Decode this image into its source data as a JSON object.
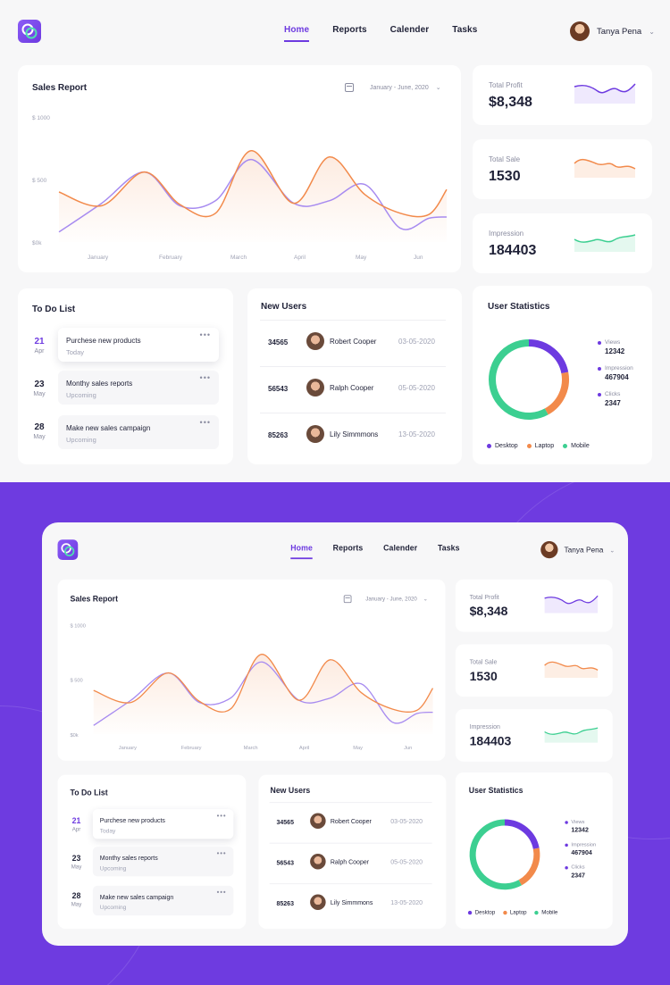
{
  "nav": {
    "items": [
      {
        "label": "Home",
        "active": true
      },
      {
        "label": "Reports",
        "active": false
      },
      {
        "label": "Calender",
        "active": false
      },
      {
        "label": "Tasks",
        "active": false
      }
    ]
  },
  "user": {
    "name": "Tanya Pena"
  },
  "sales_report": {
    "title": "Sales Report",
    "date_range": "January - June, 2020"
  },
  "stats": [
    {
      "label": "Total Profit",
      "value": "$8,348",
      "color": "#6d3ae0"
    },
    {
      "label": "Total Sale",
      "value": "1530",
      "color": "#f28a4b"
    },
    {
      "label": "Impression",
      "value": "184403",
      "color": "#3ccf91"
    }
  ],
  "todo": {
    "title": "To Do List",
    "items": [
      {
        "day": "21",
        "month": "Apr",
        "title": "Purchese new products",
        "status": "Today",
        "active": true
      },
      {
        "day": "23",
        "month": "May",
        "title": "Monthy sales reports",
        "status": "Upcoming",
        "active": false
      },
      {
        "day": "28",
        "month": "May",
        "title": "Make new sales campaign",
        "status": "Upcoming",
        "active": false
      }
    ]
  },
  "new_users": {
    "title": "New Users",
    "rows": [
      {
        "id": "34565",
        "name": "Robert Cooper",
        "date": "03-05-2020"
      },
      {
        "id": "56543",
        "name": "Ralph Cooper",
        "date": "05-05-2020"
      },
      {
        "id": "85263",
        "name": "Lily Simmmons",
        "date": "13-05-2020"
      }
    ]
  },
  "user_stats": {
    "title": "User Statistics",
    "legend": [
      {
        "label": "Views",
        "value": "12342"
      },
      {
        "label": "Impression",
        "value": "467904"
      },
      {
        "label": "Clicks",
        "value": "2347"
      }
    ],
    "segments": [
      {
        "label": "Desktop",
        "color": "#6d3ae0",
        "share": 0.22
      },
      {
        "label": "Laptop",
        "color": "#f28a4b",
        "share": 0.2
      },
      {
        "label": "Mobile",
        "color": "#3ccf91",
        "share": 0.58
      }
    ]
  },
  "chart_data": {
    "type": "line",
    "title": "Sales Report",
    "categories": [
      "January",
      "February",
      "March",
      "April",
      "May",
      "Jun"
    ],
    "y_ticks": [
      "$ 1000",
      "$ 500",
      "$0k"
    ],
    "ylim": [
      0,
      1000
    ],
    "x": [
      0,
      0.6,
      1.2,
      1.7,
      2.2,
      2.7,
      3.3,
      3.8,
      4.3,
      4.8,
      5.2,
      5.45
    ],
    "series": [
      {
        "color": "#f28a4b",
        "values": [
          400,
          290,
          560,
          300,
          230,
          730,
          310,
          680,
          380,
          230,
          220,
          420
        ]
      },
      {
        "color": "#a78bf0",
        "values": [
          80,
          310,
          560,
          290,
          330,
          660,
          310,
          330,
          460,
          110,
          190,
          200
        ]
      }
    ]
  }
}
